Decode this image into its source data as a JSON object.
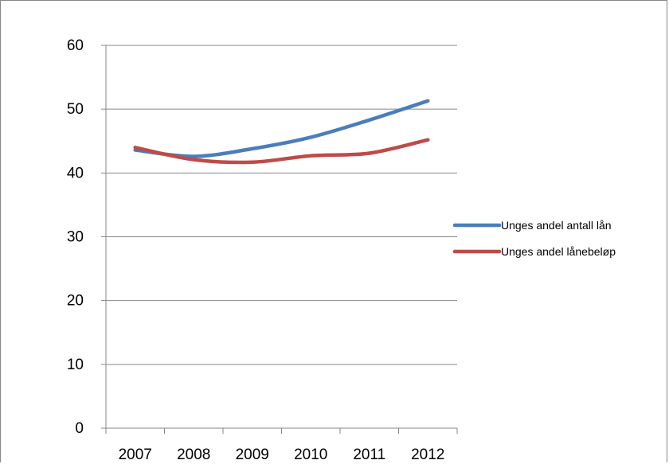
{
  "chart_data": {
    "type": "line",
    "title": "",
    "xlabel": "",
    "ylabel": "",
    "categories": [
      "2007",
      "2008",
      "2009",
      "2010",
      "2011",
      "2012"
    ],
    "ylim": [
      0,
      60
    ],
    "yticks": [
      0,
      10,
      20,
      30,
      40,
      50,
      60
    ],
    "grid": true,
    "legend_position": "right",
    "series": [
      {
        "name": "Unges andel antall lån",
        "color": "#4a7ebb",
        "values": [
          43.6,
          42.6,
          43.8,
          45.6,
          48.3,
          51.3
        ]
      },
      {
        "name": "Unges andel lånebeløp",
        "color": "#be4b48",
        "values": [
          44.0,
          42.1,
          41.7,
          42.7,
          43.1,
          45.2
        ]
      }
    ]
  }
}
